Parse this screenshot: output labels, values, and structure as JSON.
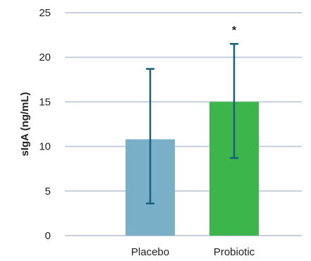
{
  "chart_data": {
    "type": "bar",
    "title": "",
    "xlabel": "",
    "ylabel": "sIgA (ng/mL)",
    "ylim": [
      0,
      25
    ],
    "yticks": [
      0,
      5,
      10,
      15,
      20,
      25
    ],
    "grid": true,
    "categories": [
      "Placebo",
      "Probiotic"
    ],
    "values": [
      10.8,
      15.0
    ],
    "error_high": [
      18.7,
      21.5
    ],
    "error_low": [
      3.6,
      8.7
    ],
    "annotations": [
      {
        "category": "Probiotic",
        "text": "*"
      }
    ],
    "colors": {
      "bars": [
        "#7aafc8",
        "#3cb54a"
      ],
      "error_bars": "#1a5f80",
      "grid": "#c5cfdb"
    }
  }
}
